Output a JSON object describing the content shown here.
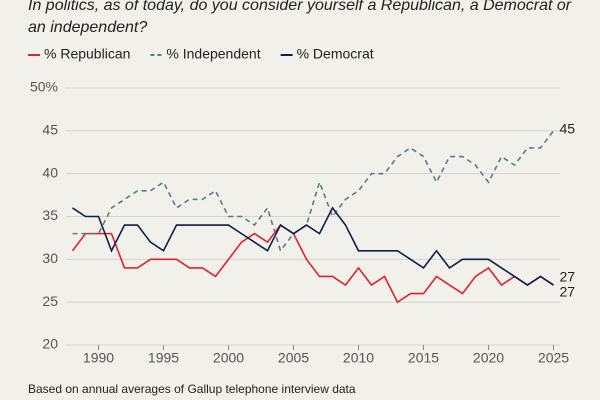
{
  "chart_data": {
    "type": "line",
    "title": [
      "In politics, as of today, do you consider yourself a Republican, a Democrat or",
      "an independent?"
    ],
    "note": "Based on annual averages of Gallup telephone interview data",
    "x": [
      1988,
      1989,
      1990,
      1991,
      1992,
      1993,
      1994,
      1995,
      1996,
      1997,
      1998,
      1999,
      2000,
      2001,
      2002,
      2003,
      2004,
      2005,
      2006,
      2007,
      2008,
      2009,
      2010,
      2011,
      2012,
      2013,
      2014,
      2015,
      2016,
      2017,
      2018,
      2019,
      2020,
      2021,
      2022,
      2023,
      2024,
      2025
    ],
    "series": [
      {
        "name": "% Republican",
        "color": "#e0212e",
        "dashed": false,
        "values": [
          31,
          33,
          33,
          33,
          29,
          29,
          30,
          30,
          30,
          29,
          29,
          28,
          30,
          32,
          33,
          32,
          34,
          33,
          30,
          28,
          28,
          27,
          29,
          27,
          28,
          25,
          26,
          26,
          28,
          27,
          26,
          28,
          29,
          27,
          28,
          27,
          28,
          27
        ]
      },
      {
        "name": "% Independent",
        "color": "#5b7b80",
        "dashed": true,
        "values": [
          33,
          33,
          33,
          36,
          37,
          38,
          38,
          39,
          36,
          37,
          37,
          38,
          35,
          35,
          34,
          36,
          31,
          33,
          34,
          39,
          35,
          37,
          38,
          40,
          40,
          42,
          43,
          42,
          39,
          42,
          42,
          41,
          39,
          42,
          41,
          43,
          43,
          45
        ]
      },
      {
        "name": "% Democrat",
        "color": "#111d4a",
        "dashed": false,
        "values": [
          36,
          35,
          35,
          31,
          34,
          34,
          32,
          31,
          34,
          34,
          34,
          34,
          34,
          33,
          32,
          31,
          34,
          33,
          34,
          33,
          36,
          34,
          31,
          31,
          31,
          31,
          30,
          29,
          31,
          29,
          30,
          30,
          30,
          29,
          28,
          27,
          28,
          27
        ]
      }
    ],
    "xlim": [
      1987.5,
      2025.5
    ],
    "xticks": [
      1990,
      1995,
      2000,
      2005,
      2010,
      2015,
      2020,
      2025
    ],
    "ylim": [
      20,
      50
    ],
    "yticks": [
      20,
      25,
      30,
      35,
      40,
      {
        "value": 50,
        "label": "50%"
      },
      45
    ],
    "grid": true
  }
}
